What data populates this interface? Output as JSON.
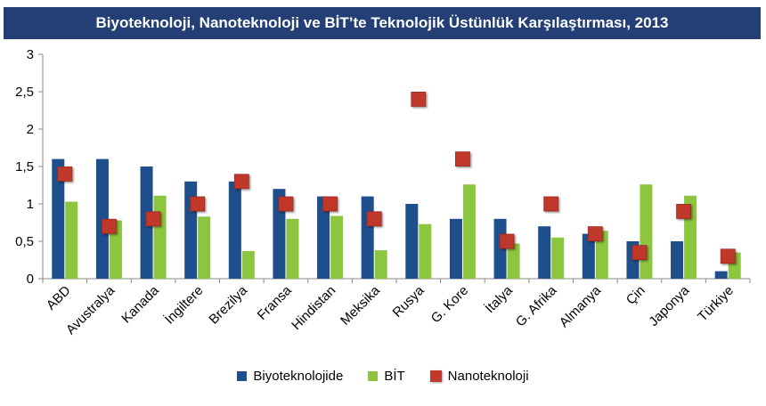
{
  "chart_data": {
    "type": "bar",
    "title": "Biyoteknoloji, Nanoteknoloji ve BİT’te Teknolojik Üstünlük Karşılaştırması, 2013",
    "xlabel": "",
    "ylabel": "",
    "ylim": [
      0,
      3
    ],
    "yticks": [
      "0",
      "0,5",
      "1",
      "1,5",
      "2",
      "2,5",
      "3"
    ],
    "grid": false,
    "legend_position": "bottom",
    "categories": [
      "ABD",
      "Avustralya",
      "Kanada",
      "İngiltere",
      "Brezilya",
      "Fransa",
      "Hindistan",
      "Meksika",
      "Rusya",
      "G. Kore",
      "İtalya",
      "G. Afrika",
      "Almanya",
      "Çin",
      "Japonya",
      "Türkiye"
    ],
    "series": [
      {
        "name": "Biyoteknolojide",
        "kind": "bar",
        "color": "#1f4e8c",
        "values": [
          1.6,
          1.6,
          1.5,
          1.3,
          1.3,
          1.2,
          1.1,
          1.1,
          1.0,
          0.8,
          0.8,
          0.7,
          0.6,
          0.5,
          0.5,
          0.1
        ]
      },
      {
        "name": "BİT",
        "kind": "bar",
        "color": "#8cc63f",
        "values": [
          1.03,
          0.78,
          1.11,
          0.83,
          0.37,
          0.8,
          0.84,
          0.38,
          0.73,
          1.26,
          0.47,
          0.55,
          0.64,
          1.26,
          1.11,
          0.35
        ]
      },
      {
        "name": "Nanoteknoloji",
        "kind": "marker",
        "color": "#c0392b",
        "values": [
          1.4,
          0.7,
          0.8,
          1.0,
          1.3,
          1.0,
          1.0,
          0.8,
          2.4,
          1.6,
          0.5,
          1.0,
          0.6,
          0.35,
          0.9,
          0.3
        ]
      }
    ]
  }
}
